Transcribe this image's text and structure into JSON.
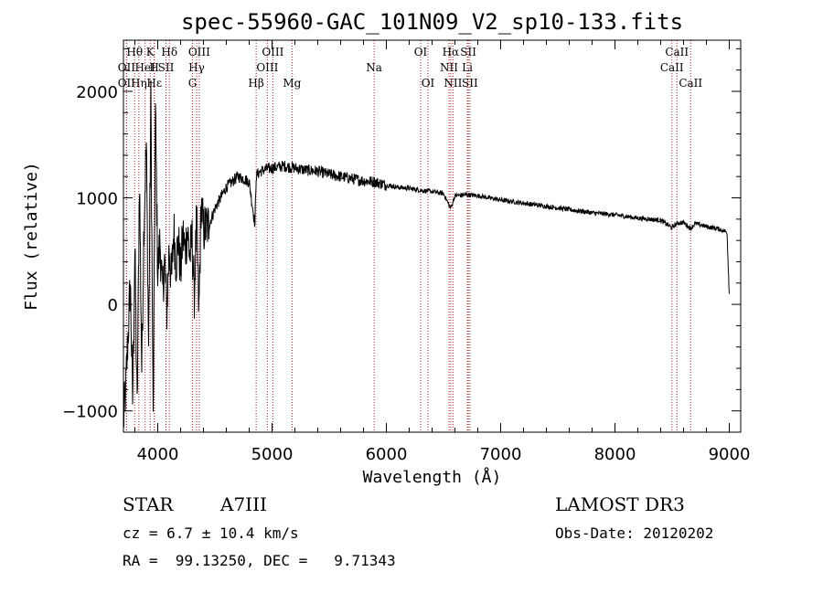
{
  "chart_data": {
    "type": "line",
    "title": "spec-55960-GAC_101N09_V2_sp10-133.fits",
    "xlabel": "Wavelength (Å)",
    "ylabel": "Flux (relative)",
    "xlim": [
      3700,
      9100
    ],
    "ylim": [
      -1200,
      2480
    ],
    "xticks": [
      4000,
      5000,
      6000,
      7000,
      8000,
      9000
    ],
    "yticks": [
      -1000,
      0,
      1000,
      2000
    ],
    "grid": false,
    "series": [
      {
        "x": [
          3700,
          3720,
          3740,
          3760,
          3780,
          3800,
          3820,
          3840,
          3860,
          3880,
          3900,
          3920,
          3940,
          3960,
          3980,
          4000,
          4020,
          4040,
          4060,
          4080,
          4100,
          4120,
          4140,
          4160,
          4180,
          4200,
          4220,
          4240,
          4260,
          4280,
          4300,
          4320,
          4340,
          4360,
          4380,
          4400,
          4450,
          4500,
          4550,
          4600,
          4650,
          4700,
          4750,
          4800,
          4850,
          4861,
          4870,
          4900,
          4950,
          5000,
          5100,
          5200,
          5300,
          5400,
          5500,
          5600,
          5700,
          5800,
          5900,
          6000,
          6100,
          6200,
          6300,
          6400,
          6500,
          6563,
          6600,
          6700,
          6800,
          6900,
          7000,
          7200,
          7400,
          7600,
          7800,
          8000,
          8200,
          8400,
          8498,
          8542,
          8600,
          8662,
          8700,
          8800,
          8900,
          8980,
          9000
        ],
        "y": [
          -1100,
          -800,
          -300,
          200,
          -900,
          500,
          -1000,
          1200,
          -600,
          800,
          1500,
          -400,
          1900,
          -1100,
          1800,
          300,
          600,
          100,
          400,
          -50,
          550,
          200,
          700,
          400,
          600,
          300,
          650,
          500,
          700,
          450,
          600,
          100,
          800,
          -100,
          950,
          700,
          750,
          900,
          1000,
          1100,
          1150,
          1200,
          1180,
          1150,
          750,
          1200,
          1220,
          1250,
          1270,
          1280,
          1300,
          1280,
          1260,
          1250,
          1220,
          1200,
          1180,
          1160,
          1150,
          1120,
          1100,
          1090,
          1070,
          1060,
          1040,
          900,
          1020,
          1030,
          1020,
          1000,
          980,
          950,
          920,
          890,
          860,
          840,
          810,
          790,
          720,
          760,
          770,
          710,
          760,
          730,
          710,
          680,
          100
        ],
        "note_lines": "vertical dotted reference lines at identified spectral features"
      }
    ],
    "line_marks": [
      {
        "label": "Hθ",
        "wl": 3798,
        "row": 0
      },
      {
        "label": "K",
        "wl": 3934,
        "row": 0
      },
      {
        "label": "Hδ",
        "wl": 4102,
        "row": 0
      },
      {
        "label": "OIII",
        "wl": 4363,
        "row": 0
      },
      {
        "label": "OIII",
        "wl": 5007,
        "row": 0
      },
      {
        "label": "OI",
        "wl": 6300,
        "row": 0
      },
      {
        "label": "Hα",
        "wl": 6563,
        "row": 0
      },
      {
        "label": "SII",
        "wl": 6717,
        "row": 0
      },
      {
        "label": "CaII",
        "wl": 8542,
        "row": 0
      },
      {
        "label": "OII",
        "wl": 3727,
        "row": 1
      },
      {
        "label": "H",
        "wl": 3969,
        "row": 1
      },
      {
        "label": "HeI",
        "wl": 3889,
        "row": 1
      },
      {
        "label": "SII",
        "wl": 4072,
        "row": 1
      },
      {
        "label": "Hγ",
        "wl": 4340,
        "row": 1
      },
      {
        "label": "OIII",
        "wl": 4959,
        "row": 1
      },
      {
        "label": "Na",
        "wl": 5893,
        "row": 1
      },
      {
        "label": "NII",
        "wl": 6548,
        "row": 1
      },
      {
        "label": "Li",
        "wl": 6708,
        "row": 1
      },
      {
        "label": "CaII",
        "wl": 8498,
        "row": 1
      },
      {
        "label": "OII",
        "wl": 3727,
        "row": 2
      },
      {
        "label": "Hη",
        "wl": 3835,
        "row": 2
      },
      {
        "label": "Hε",
        "wl": 3970,
        "row": 2
      },
      {
        "label": "G",
        "wl": 4304,
        "row": 2
      },
      {
        "label": "Hβ",
        "wl": 4861,
        "row": 2
      },
      {
        "label": "Mg",
        "wl": 5175,
        "row": 2
      },
      {
        "label": "OI",
        "wl": 6364,
        "row": 2
      },
      {
        "label": "NII",
        "wl": 6583,
        "row": 2
      },
      {
        "label": "SII",
        "wl": 6731,
        "row": 2
      },
      {
        "label": "CaII",
        "wl": 8662,
        "row": 2
      }
    ],
    "colors": {
      "spectrum": "#000000",
      "marker_lines": "#b22222",
      "axes": "#000000"
    }
  },
  "info": {
    "obj_class": "STAR",
    "subclass": "A7III",
    "survey": "LAMOST DR3",
    "cz": "cz = 6.7 ± 10.4 km/s",
    "obs_date": "Obs-Date: 20120202",
    "radec": "RA =  99.13250, DEC =   9.71343"
  }
}
